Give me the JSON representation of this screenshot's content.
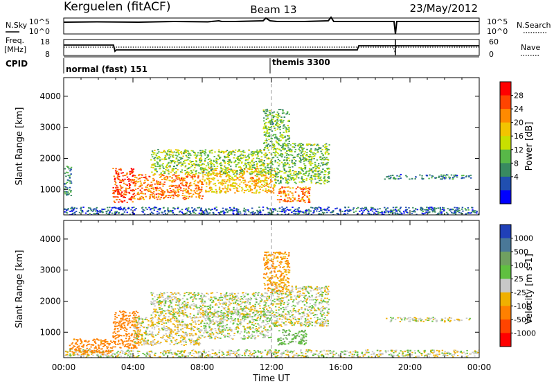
{
  "header": {
    "site": "Kerguelen (fitACF)",
    "beam": "Beam 13",
    "date": "23/May/2012"
  },
  "status_panels": {
    "nsky_label": "N.Sky",
    "nsky_ticks": [
      "10^5",
      "10^0"
    ],
    "nsearch_label": "N.Search",
    "nsearch_ticks": [
      "10^5",
      "10^0"
    ],
    "freq_label": "Freq.",
    "freq_unit": "[MHz]",
    "freq_ticks": [
      "18",
      "8"
    ],
    "nave_label": "Nave",
    "nave_ticks": [
      "60",
      "0"
    ],
    "cpid_label": "CPID",
    "cpid_segments": [
      {
        "label": "normal (fast) 151",
        "start_hour": 0
      },
      {
        "label": "themis 3300",
        "start_hour": 12
      }
    ]
  },
  "chart_data": [
    {
      "type": "heatmap",
      "name": "power",
      "xlabel": "",
      "ylabel": "Slant Range [km]",
      "xlim": [
        0,
        24
      ],
      "ylim": [
        180,
        4600
      ],
      "yticks": [
        1000,
        2000,
        3000,
        4000
      ],
      "colorbar": {
        "label": "Power [dB]",
        "ticks": [
          "28",
          "24",
          "20",
          "16",
          "12",
          "8",
          "4"
        ],
        "colors": [
          "#ff0000",
          "#ff4400",
          "#ff8a00",
          "#f2c400",
          "#c8e000",
          "#58b848",
          "#388a60",
          "#204fb0",
          "#0000ff"
        ]
      },
      "echo_regions": [
        {
          "x": [
            0.0,
            24.0
          ],
          "y": [
            200,
            450
          ],
          "value": 6
        },
        {
          "x": [
            2.8,
            4.0
          ],
          "y": [
            600,
            1700
          ],
          "value": 27
        },
        {
          "x": [
            4.0,
            8.0
          ],
          "y": [
            700,
            1500
          ],
          "value": 24
        },
        {
          "x": [
            8.0,
            12.2
          ],
          "y": [
            900,
            1700
          ],
          "value": 20
        },
        {
          "x": [
            5.0,
            12.0
          ],
          "y": [
            1500,
            2300
          ],
          "value": 14
        },
        {
          "x": [
            12.0,
            15.3
          ],
          "y": [
            1200,
            2500
          ],
          "value": 13
        },
        {
          "x": [
            12.3,
            14.2
          ],
          "y": [
            600,
            1100
          ],
          "value": 24
        },
        {
          "x": [
            11.5,
            13.0
          ],
          "y": [
            2300,
            3600
          ],
          "value": 12
        },
        {
          "x": [
            0.0,
            0.4
          ],
          "y": [
            800,
            1800
          ],
          "value": 9
        },
        {
          "x": [
            18.5,
            23.5
          ],
          "y": [
            1350,
            1500
          ],
          "value": 8
        }
      ],
      "dashed_marker_hour": 12
    },
    {
      "type": "heatmap",
      "name": "velocity",
      "xlabel": "Time UT",
      "ylabel": "Slant Range [km]",
      "xlim": [
        0,
        24
      ],
      "ylim": [
        180,
        4600
      ],
      "yticks": [
        1000,
        2000,
        3000,
        4000
      ],
      "xticks": [
        "00:00",
        "04:00",
        "08:00",
        "12:00",
        "16:00",
        "20:00",
        "00:00"
      ],
      "colorbar": {
        "label": "Velocity [m s-1]",
        "ticks": [
          "1000",
          "500",
          "100",
          "25",
          "-25",
          "-100",
          "-500",
          "-1000"
        ],
        "colors": [
          "#2040b8",
          "#4a7898",
          "#70a060",
          "#60c040",
          "#c8c8c8",
          "#f0b000",
          "#ff8000",
          "#ff4400",
          "#ff0000"
        ]
      },
      "echo_regions": [
        {
          "x": [
            0.0,
            24.0
          ],
          "y": [
            200,
            450
          ],
          "value": 0
        },
        {
          "x": [
            0.3,
            2.8
          ],
          "y": [
            300,
            800
          ],
          "value": -150
        },
        {
          "x": [
            2.8,
            4.3
          ],
          "y": [
            500,
            1700
          ],
          "value": -300
        },
        {
          "x": [
            4.0,
            8.0
          ],
          "y": [
            600,
            1500
          ],
          "value": -20
        },
        {
          "x": [
            8.0,
            12.0
          ],
          "y": [
            800,
            1700
          ],
          "value": 10
        },
        {
          "x": [
            5.0,
            12.0
          ],
          "y": [
            1500,
            2300
          ],
          "value": 0
        },
        {
          "x": [
            12.0,
            15.3
          ],
          "y": [
            1200,
            2500
          ],
          "value": 0
        },
        {
          "x": [
            12.3,
            14.0
          ],
          "y": [
            600,
            1100
          ],
          "value": 80
        },
        {
          "x": [
            11.5,
            13.0
          ],
          "y": [
            2300,
            3600
          ],
          "value": -100
        },
        {
          "x": [
            18.5,
            23.5
          ],
          "y": [
            1350,
            1500
          ],
          "value": 0
        }
      ],
      "dashed_marker_hour": 12
    }
  ]
}
